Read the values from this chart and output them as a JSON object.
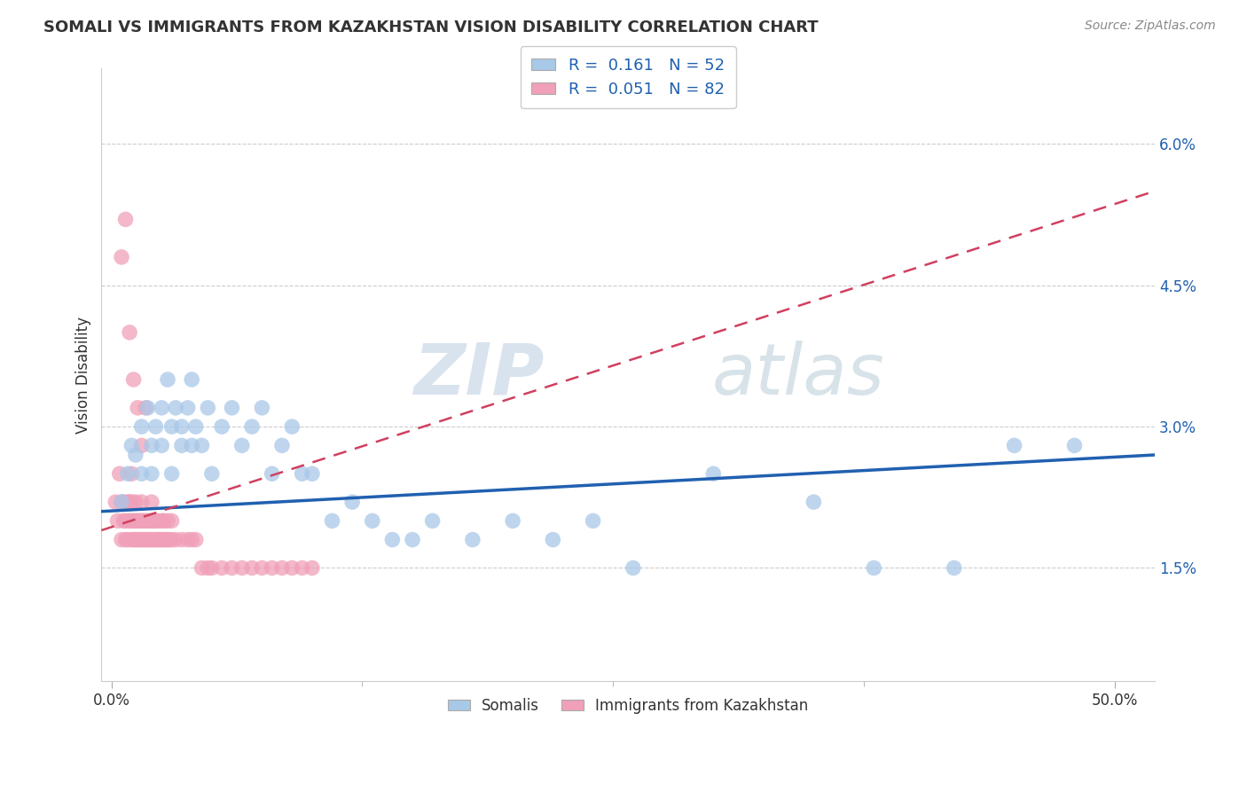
{
  "title": "SOMALI VS IMMIGRANTS FROM KAZAKHSTAN VISION DISABILITY CORRELATION CHART",
  "source": "Source: ZipAtlas.com",
  "ylabel": "Vision Disability",
  "yticks": [
    "1.5%",
    "3.0%",
    "4.5%",
    "6.0%"
  ],
  "ytick_vals": [
    0.015,
    0.03,
    0.045,
    0.06
  ],
  "ylim": [
    0.003,
    0.068
  ],
  "xlim": [
    -0.005,
    0.52
  ],
  "xticks": [
    0.0,
    0.5
  ],
  "xtick_labels": [
    "0.0%",
    "50.0%"
  ],
  "legend_blue_r": "0.161",
  "legend_blue_n": "52",
  "legend_pink_r": "0.051",
  "legend_pink_n": "82",
  "blue_color": "#a8c8e8",
  "pink_color": "#f0a0b8",
  "blue_line_color": "#2060b0",
  "pink_line_color": "#d04060",
  "watermark_zip": "ZIP",
  "watermark_atlas": "atlas",
  "somali_x": [
    0.005,
    0.008,
    0.01,
    0.012,
    0.015,
    0.015,
    0.018,
    0.02,
    0.02,
    0.022,
    0.025,
    0.025,
    0.028,
    0.03,
    0.03,
    0.032,
    0.035,
    0.035,
    0.038,
    0.04,
    0.04,
    0.042,
    0.045,
    0.048,
    0.05,
    0.055,
    0.06,
    0.065,
    0.07,
    0.075,
    0.08,
    0.085,
    0.09,
    0.095,
    0.1,
    0.11,
    0.12,
    0.13,
    0.14,
    0.15,
    0.16,
    0.18,
    0.2,
    0.22,
    0.24,
    0.26,
    0.3,
    0.35,
    0.38,
    0.42,
    0.45,
    0.48
  ],
  "somali_y": [
    0.022,
    0.025,
    0.028,
    0.027,
    0.03,
    0.025,
    0.032,
    0.028,
    0.025,
    0.03,
    0.032,
    0.028,
    0.035,
    0.03,
    0.025,
    0.032,
    0.03,
    0.028,
    0.032,
    0.035,
    0.028,
    0.03,
    0.028,
    0.032,
    0.025,
    0.03,
    0.032,
    0.028,
    0.03,
    0.032,
    0.025,
    0.028,
    0.03,
    0.025,
    0.025,
    0.02,
    0.022,
    0.02,
    0.018,
    0.018,
    0.02,
    0.018,
    0.02,
    0.018,
    0.02,
    0.015,
    0.025,
    0.022,
    0.015,
    0.015,
    0.028,
    0.028
  ],
  "kazakhstan_x": [
    0.002,
    0.003,
    0.004,
    0.005,
    0.005,
    0.006,
    0.006,
    0.007,
    0.007,
    0.008,
    0.008,
    0.009,
    0.009,
    0.01,
    0.01,
    0.01,
    0.01,
    0.011,
    0.011,
    0.012,
    0.012,
    0.012,
    0.013,
    0.013,
    0.014,
    0.014,
    0.015,
    0.015,
    0.015,
    0.016,
    0.016,
    0.017,
    0.017,
    0.018,
    0.018,
    0.019,
    0.019,
    0.02,
    0.02,
    0.02,
    0.021,
    0.021,
    0.022,
    0.022,
    0.023,
    0.023,
    0.024,
    0.025,
    0.025,
    0.026,
    0.026,
    0.027,
    0.028,
    0.028,
    0.029,
    0.03,
    0.03,
    0.032,
    0.035,
    0.038,
    0.04,
    0.042,
    0.045,
    0.048,
    0.05,
    0.055,
    0.06,
    0.065,
    0.07,
    0.075,
    0.08,
    0.085,
    0.09,
    0.095,
    0.1,
    0.005,
    0.007,
    0.009,
    0.011,
    0.013,
    0.015,
    0.017
  ],
  "kazakhstan_y": [
    0.022,
    0.02,
    0.025,
    0.022,
    0.018,
    0.02,
    0.022,
    0.018,
    0.02,
    0.022,
    0.018,
    0.02,
    0.022,
    0.018,
    0.02,
    0.022,
    0.025,
    0.018,
    0.02,
    0.018,
    0.02,
    0.022,
    0.018,
    0.02,
    0.018,
    0.02,
    0.018,
    0.02,
    0.022,
    0.018,
    0.02,
    0.018,
    0.02,
    0.018,
    0.02,
    0.018,
    0.02,
    0.018,
    0.02,
    0.022,
    0.018,
    0.02,
    0.018,
    0.02,
    0.018,
    0.02,
    0.018,
    0.018,
    0.02,
    0.018,
    0.02,
    0.018,
    0.018,
    0.02,
    0.018,
    0.018,
    0.02,
    0.018,
    0.018,
    0.018,
    0.018,
    0.018,
    0.015,
    0.015,
    0.015,
    0.015,
    0.015,
    0.015,
    0.015,
    0.015,
    0.015,
    0.015,
    0.015,
    0.015,
    0.015,
    0.048,
    0.052,
    0.04,
    0.035,
    0.032,
    0.028,
    0.032
  ]
}
